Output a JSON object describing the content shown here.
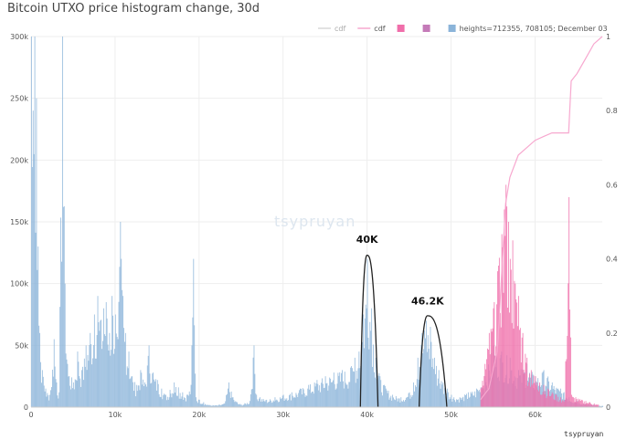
{
  "chart_data": {
    "type": "bar",
    "title": "Bitcoin UTXO price histogram change, 30d",
    "xlabel": "",
    "ylabel": "",
    "xlim": [
      0,
      68000
    ],
    "ylim": [
      0,
      300000
    ],
    "y2lim": [
      0,
      1
    ],
    "x_ticks": [
      0,
      10000,
      20000,
      30000,
      40000,
      50000,
      60000
    ],
    "x_tick_labels": [
      "0",
      "10k",
      "20k",
      "30k",
      "40k",
      "50k",
      "60k"
    ],
    "y_ticks": [
      0,
      50000,
      100000,
      150000,
      200000,
      250000,
      300000
    ],
    "y_tick_labels": [
      "0",
      "50k",
      "100k",
      "150k",
      "200k",
      "250k",
      "300k"
    ],
    "y2_ticks": [
      0,
      0.2,
      0.4,
      0.6,
      0.8,
      1
    ],
    "y2_tick_labels": [
      "0",
      "0.2",
      "0.4",
      "0.6",
      "0.8",
      "1"
    ],
    "grid": true,
    "legend_position": "top-right",
    "legend": [
      {
        "label": "cdf",
        "color": "#d9d9d9",
        "kind": "line"
      },
      {
        "label": "cdf",
        "color": "#f7a8cf",
        "kind": "line"
      },
      {
        "label": "",
        "color": "#f06eaa",
        "kind": "box"
      },
      {
        "label": "",
        "color": "#c47ab8",
        "kind": "box"
      },
      {
        "label": "heights=712355, 708105; December 03",
        "color": "#8bb4d9",
        "kind": "box"
      }
    ],
    "series": [
      {
        "name": "heights=712355, 708105; December 03",
        "color": "#8bb4d9",
        "points": [
          [
            0,
            300000
          ],
          [
            200,
            240000
          ],
          [
            400,
            300000
          ],
          [
            600,
            250000
          ],
          [
            800,
            130000
          ],
          [
            1000,
            60000
          ],
          [
            1300,
            30000
          ],
          [
            1700,
            15000
          ],
          [
            2200,
            10000
          ],
          [
            2700,
            55000
          ],
          [
            3000,
            20000
          ],
          [
            3300,
            12000
          ],
          [
            3700,
            300000
          ],
          [
            4000,
            100000
          ],
          [
            4300,
            35000
          ],
          [
            5000,
            20000
          ],
          [
            5500,
            45000
          ],
          [
            6000,
            30000
          ],
          [
            6500,
            50000
          ],
          [
            7000,
            60000
          ],
          [
            7500,
            75000
          ],
          [
            7900,
            90000
          ],
          [
            8200,
            70000
          ],
          [
            8600,
            80000
          ],
          [
            8900,
            85000
          ],
          [
            9300,
            60000
          ],
          [
            9600,
            90000
          ],
          [
            10000,
            75000
          ],
          [
            10300,
            55000
          ],
          [
            10600,
            150000
          ],
          [
            10900,
            90000
          ],
          [
            11200,
            60000
          ],
          [
            11600,
            45000
          ],
          [
            12000,
            25000
          ],
          [
            12500,
            18000
          ],
          [
            13000,
            30000
          ],
          [
            13500,
            20000
          ],
          [
            14000,
            50000
          ],
          [
            14500,
            28000
          ],
          [
            15000,
            22000
          ],
          [
            15500,
            15000
          ],
          [
            16000,
            10000
          ],
          [
            16500,
            14000
          ],
          [
            17000,
            20000
          ],
          [
            17500,
            16000
          ],
          [
            18000,
            12000
          ],
          [
            18500,
            10000
          ],
          [
            19000,
            18000
          ],
          [
            19300,
            120000
          ],
          [
            19600,
            8000
          ],
          [
            20000,
            6000
          ],
          [
            20500,
            4000
          ],
          [
            21000,
            2000
          ],
          [
            22000,
            1500
          ],
          [
            23000,
            3000
          ],
          [
            23500,
            20000
          ],
          [
            24000,
            8000
          ],
          [
            24500,
            4000
          ],
          [
            25000,
            2000
          ],
          [
            26000,
            5000
          ],
          [
            26500,
            50000
          ],
          [
            26800,
            10000
          ],
          [
            27200,
            8000
          ],
          [
            28000,
            6000
          ],
          [
            29000,
            8000
          ],
          [
            30000,
            10000
          ],
          [
            31000,
            12000
          ],
          [
            32000,
            15000
          ],
          [
            33000,
            18000
          ],
          [
            34000,
            22000
          ],
          [
            35000,
            25000
          ],
          [
            36000,
            28000
          ],
          [
            37000,
            30000
          ],
          [
            38000,
            32000
          ],
          [
            38500,
            40000
          ],
          [
            39000,
            45000
          ],
          [
            39500,
            75000
          ],
          [
            40000,
            120000
          ],
          [
            40500,
            80000
          ],
          [
            41000,
            40000
          ],
          [
            41500,
            25000
          ],
          [
            42000,
            18000
          ],
          [
            43000,
            10000
          ],
          [
            44000,
            8000
          ],
          [
            45000,
            12000
          ],
          [
            45500,
            20000
          ],
          [
            46000,
            40000
          ],
          [
            46500,
            60000
          ],
          [
            47000,
            70000
          ],
          [
            47500,
            65000
          ],
          [
            48000,
            40000
          ],
          [
            48500,
            30000
          ],
          [
            49000,
            20000
          ],
          [
            49500,
            15000
          ],
          [
            50000,
            10000
          ],
          [
            51000,
            8000
          ],
          [
            52000,
            12000
          ],
          [
            53000,
            15000
          ],
          [
            54000,
            25000
          ],
          [
            55000,
            50000
          ],
          [
            56000,
            45000
          ],
          [
            57000,
            40000
          ],
          [
            58000,
            30000
          ],
          [
            59000,
            35000
          ],
          [
            60000,
            25000
          ],
          [
            61000,
            30000
          ],
          [
            62000,
            20000
          ],
          [
            63000,
            15000
          ],
          [
            64000,
            8000
          ],
          [
            65000,
            5000
          ],
          [
            66000,
            3000
          ],
          [
            67000,
            2000
          ],
          [
            68000,
            1000
          ]
        ]
      },
      {
        "name": "",
        "color": "#f06eaa",
        "points": [
          [
            53500,
            15000
          ],
          [
            54000,
            35000
          ],
          [
            54500,
            60000
          ],
          [
            55000,
            80000
          ],
          [
            55500,
            110000
          ],
          [
            56000,
            140000
          ],
          [
            56300,
            160000
          ],
          [
            56500,
            180000
          ],
          [
            56800,
            150000
          ],
          [
            57000,
            120000
          ],
          [
            57300,
            135000
          ],
          [
            57600,
            100000
          ],
          [
            58000,
            90000
          ],
          [
            58500,
            60000
          ],
          [
            59000,
            40000
          ],
          [
            59500,
            30000
          ],
          [
            60000,
            25000
          ],
          [
            60500,
            20000
          ],
          [
            61000,
            18000
          ],
          [
            61500,
            15000
          ],
          [
            62000,
            12000
          ],
          [
            62500,
            10000
          ],
          [
            63000,
            8000
          ],
          [
            63500,
            6000
          ],
          [
            64000,
            170000
          ],
          [
            64300,
            10000
          ],
          [
            64800,
            8000
          ],
          [
            65500,
            6000
          ],
          [
            66000,
            5000
          ],
          [
            66500,
            4000
          ],
          [
            67000,
            3000
          ],
          [
            67500,
            2000
          ]
        ]
      },
      {
        "name": "cdf",
        "color": "#f7a8cf",
        "kind": "cdf",
        "points": [
          [
            53500,
            0.02
          ],
          [
            54500,
            0.05
          ],
          [
            55500,
            0.15
          ],
          [
            56000,
            0.35
          ],
          [
            56500,
            0.55
          ],
          [
            57000,
            0.62
          ],
          [
            58000,
            0.68
          ],
          [
            59000,
            0.7
          ],
          [
            60000,
            0.72
          ],
          [
            61000,
            0.73
          ],
          [
            62000,
            0.74
          ],
          [
            64000,
            0.74
          ],
          [
            64300,
            0.88
          ],
          [
            65000,
            0.9
          ],
          [
            66000,
            0.94
          ],
          [
            67000,
            0.98
          ],
          [
            68000,
            1.0
          ]
        ]
      }
    ],
    "annotations": [
      {
        "text": "40K",
        "x": 40000,
        "y": 133000
      },
      {
        "text": "46.2K",
        "x": 47200,
        "y": 83000
      }
    ],
    "peak_curves": [
      {
        "x_start": 39200,
        "x_peak": 40000,
        "x_end": 41300,
        "y_peak": 123000
      },
      {
        "x_start": 46200,
        "x_peak": 47200,
        "x_end": 49500,
        "y_peak": 74000
      }
    ],
    "watermark": "tsypruyan",
    "credit": "tsypruyan"
  }
}
